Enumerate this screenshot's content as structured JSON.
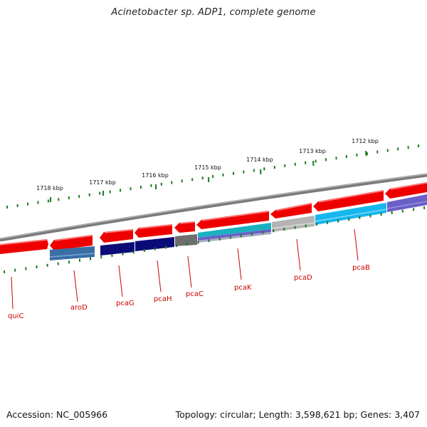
{
  "title": "Acinetobacter sp. ADP1, complete genome",
  "footer": {
    "accession": "Accession: NC_005966",
    "topology": "Topology: circular; Length: 3,598,621 bp; Genes: 3,407"
  },
  "colors": {
    "backbone": "#7a7a7a",
    "tick": "#1e7a1e",
    "gene_label": "#cc0000",
    "forward": "#ee0000",
    "navy": "#0b0b78",
    "steelblue": "#3a6ea5",
    "gray": "#6e6e6e",
    "cyan": "#1ab0c0",
    "lightgray": "#b4b4b4",
    "skyblue": "#16b6ee",
    "purple": "#6a5fc8"
  },
  "kbp_labels": [
    "1712 kbp",
    "1713 kbp",
    "1714 kbp",
    "1715 kbp",
    "1716 kbp",
    "1717 kbp",
    "1718 kbp"
  ],
  "genes": [
    "quiC",
    "aroD",
    "pcaG",
    "pcaH",
    "pcaC",
    "pcaK",
    "pcaD",
    "pcaB"
  ]
}
